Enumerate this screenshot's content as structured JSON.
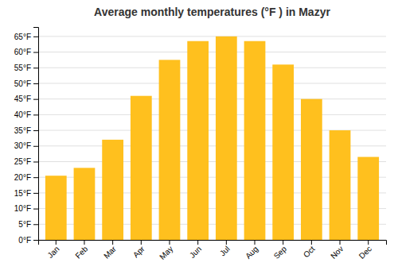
{
  "chart_data": {
    "type": "bar",
    "title": "Average monthly temperatures (°F ) in Mazyr",
    "categories": [
      "Jan",
      "Feb",
      "Mar",
      "Apr",
      "May",
      "Jun",
      "Jul",
      "Aug",
      "Sep",
      "Oct",
      "Nov",
      "Dec"
    ],
    "values": [
      20.5,
      23.0,
      32.0,
      46.0,
      57.5,
      63.5,
      65.0,
      63.5,
      56.0,
      45.0,
      35.0,
      26.5
    ],
    "color": "#FFC01E",
    "ylim": [
      0,
      68
    ],
    "yticks": [
      {
        "value": 0,
        "label": "0°F"
      },
      {
        "value": 5,
        "label": "5°F"
      },
      {
        "value": 10,
        "label": "10°F"
      },
      {
        "value": 15,
        "label": "15°F"
      },
      {
        "value": 20,
        "label": "20°F"
      },
      {
        "value": 25,
        "label": "25°F"
      },
      {
        "value": 30,
        "label": "30°F"
      },
      {
        "value": 35,
        "label": "35°F"
      },
      {
        "value": 40,
        "label": "40°F"
      },
      {
        "value": 45,
        "label": "45°F"
      },
      {
        "value": 50,
        "label": "50°F"
      },
      {
        "value": 55,
        "label": "55°F"
      },
      {
        "value": 60,
        "label": "60°F"
      },
      {
        "value": 65,
        "label": "65°F"
      }
    ],
    "grid": true
  }
}
